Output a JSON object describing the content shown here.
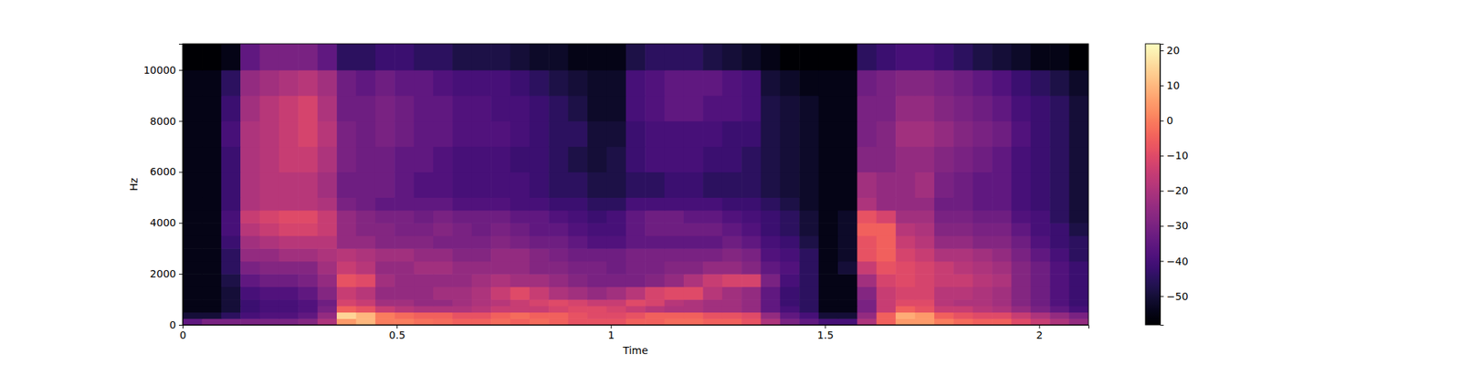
{
  "chart_data": {
    "type": "heatmap",
    "x_label": "Time",
    "y_label": "Hz",
    "xlim": [
      0,
      2.115
    ],
    "xticks": [
      0,
      0.5,
      1,
      1.5,
      2
    ],
    "ylim": [
      0,
      11025
    ],
    "yticks": [
      0,
      2000,
      4000,
      6000,
      8000,
      10000
    ],
    "time_bins": [
      0,
      0.045,
      0.09,
      0.135,
      0.18,
      0.225,
      0.27,
      0.315,
      0.36,
      0.405,
      0.45,
      0.495,
      0.54,
      0.585,
      0.63,
      0.675,
      0.72,
      0.765,
      0.81,
      0.855,
      0.9,
      0.945,
      0.99,
      1.035,
      1.08,
      1.125,
      1.17,
      1.215,
      1.26,
      1.305,
      1.35,
      1.395,
      1.44,
      1.485,
      1.53,
      1.575,
      1.62,
      1.665,
      1.71,
      1.755,
      1.8,
      1.845,
      1.89,
      1.935,
      1.98,
      2.025,
      2.07,
      2.115
    ],
    "freq_bins": [
      0,
      250,
      500,
      750,
      1000,
      1500,
      2000,
      2500,
      3000,
      3500,
      4000,
      4500,
      5000,
      6000,
      7000,
      8000,
      9000,
      10000,
      11025
    ],
    "cells": [
      [
        -35,
        -30,
        -30,
        -30,
        -30,
        -30,
        -28,
        -20,
        5,
        10,
        0,
        0,
        -2,
        -3,
        -5,
        -5,
        -3,
        -5,
        -3,
        -5,
        -8,
        -8,
        -8,
        -5,
        -5,
        -3,
        -3,
        -5,
        -5,
        -8,
        -20,
        -30,
        -35,
        -40,
        -40,
        -20,
        -5,
        5,
        5,
        0,
        -3,
        -5,
        -5,
        -10,
        -15,
        -20,
        -25
      ],
      [
        -50,
        -50,
        -45,
        -40,
        -38,
        -38,
        -35,
        -25,
        15,
        10,
        0,
        -3,
        -5,
        -5,
        -8,
        -8,
        -5,
        -3,
        -5,
        -5,
        -8,
        -10,
        -10,
        -8,
        -5,
        -5,
        -5,
        -8,
        -8,
        -10,
        -25,
        -35,
        -40,
        -50,
        -50,
        -25,
        -5,
        8,
        5,
        -5,
        -8,
        -10,
        -10,
        -15,
        -20,
        -25,
        -30
      ],
      [
        -55,
        -55,
        -50,
        -42,
        -40,
        -40,
        -38,
        -30,
        -5,
        -8,
        -15,
        -18,
        -20,
        -20,
        -20,
        -18,
        -15,
        -15,
        -15,
        -12,
        -10,
        -10,
        -12,
        -15,
        -18,
        -20,
        -20,
        -22,
        -22,
        -25,
        -35,
        -40,
        -45,
        -55,
        -55,
        -30,
        -15,
        -5,
        -8,
        -15,
        -15,
        -18,
        -20,
        -25,
        -30,
        -35,
        -40
      ],
      [
        -55,
        -55,
        -50,
        -42,
        -40,
        -40,
        -38,
        -32,
        -12,
        -15,
        -22,
        -22,
        -25,
        -25,
        -22,
        -20,
        -18,
        -15,
        -12,
        -10,
        -12,
        -15,
        -15,
        -10,
        -12,
        -18,
        -20,
        -22,
        -22,
        -25,
        -35,
        -42,
        -45,
        -55,
        -55,
        -30,
        -15,
        -10,
        -10,
        -18,
        -20,
        -20,
        -22,
        -28,
        -32,
        -38,
        -42
      ],
      [
        -55,
        -55,
        -50,
        -40,
        -38,
        -38,
        -35,
        -28,
        -15,
        -18,
        -25,
        -25,
        -25,
        -22,
        -22,
        -20,
        -15,
        -10,
        -15,
        -20,
        -22,
        -25,
        -22,
        -18,
        -12,
        -10,
        -10,
        -18,
        -22,
        -25,
        -35,
        -42,
        -45,
        -55,
        -55,
        -28,
        -15,
        -12,
        -12,
        -18,
        -18,
        -20,
        -22,
        -28,
        -32,
        -38,
        -42
      ],
      [
        -55,
        -55,
        -48,
        -35,
        -32,
        -32,
        -30,
        -25,
        -8,
        -10,
        -22,
        -25,
        -25,
        -25,
        -25,
        -22,
        -20,
        -22,
        -22,
        -25,
        -28,
        -30,
        -30,
        -30,
        -28,
        -25,
        -20,
        -15,
        -12,
        -12,
        -30,
        -40,
        -45,
        -55,
        -55,
        -22,
        -12,
        -10,
        -12,
        -15,
        -15,
        -18,
        -20,
        -28,
        -32,
        -38,
        -42
      ],
      [
        -55,
        -55,
        -45,
        -30,
        -28,
        -28,
        -28,
        -22,
        -15,
        -18,
        -25,
        -25,
        -22,
        -22,
        -25,
        -25,
        -25,
        -25,
        -28,
        -28,
        -30,
        -30,
        -32,
        -30,
        -30,
        -28,
        -28,
        -25,
        -25,
        -28,
        -35,
        -38,
        -45,
        -55,
        -50,
        -15,
        -8,
        -10,
        -12,
        -15,
        -18,
        -20,
        -22,
        -28,
        -32,
        -38,
        -42
      ],
      [
        -55,
        -55,
        -45,
        -25,
        -25,
        -22,
        -22,
        -20,
        -18,
        -20,
        -22,
        -22,
        -25,
        -25,
        -28,
        -28,
        -25,
        -25,
        -28,
        -30,
        -32,
        -32,
        -32,
        -30,
        -30,
        -30,
        -30,
        -30,
        -28,
        -30,
        -38,
        -40,
        -45,
        -55,
        -52,
        -8,
        -5,
        -12,
        -15,
        -20,
        -20,
        -22,
        -25,
        -30,
        -35,
        -40,
        -45
      ],
      [
        -55,
        -55,
        -42,
        -22,
        -20,
        -18,
        -18,
        -18,
        -25,
        -25,
        -28,
        -28,
        -28,
        -30,
        -30,
        -30,
        -28,
        -30,
        -32,
        -32,
        -35,
        -38,
        -38,
        -35,
        -35,
        -35,
        -35,
        -35,
        -32,
        -35,
        -40,
        -42,
        -48,
        -55,
        -52,
        -8,
        -5,
        -15,
        -18,
        -25,
        -25,
        -28,
        -28,
        -32,
        -38,
        -42,
        -45
      ],
      [
        -55,
        -55,
        -40,
        -18,
        -15,
        -12,
        -12,
        -15,
        -25,
        -28,
        -28,
        -30,
        -30,
        -28,
        -30,
        -32,
        -30,
        -32,
        -35,
        -35,
        -38,
        -40,
        -40,
        -35,
        -32,
        -32,
        -32,
        -32,
        -35,
        -38,
        -42,
        -45,
        -50,
        -55,
        -52,
        -5,
        -5,
        -18,
        -20,
        -28,
        -28,
        -30,
        -30,
        -35,
        -40,
        -42,
        -48
      ],
      [
        -55,
        -55,
        -40,
        -15,
        -12,
        -10,
        -10,
        -15,
        -25,
        -28,
        -30,
        -30,
        -32,
        -30,
        -32,
        -32,
        -32,
        -35,
        -35,
        -38,
        -40,
        -42,
        -40,
        -35,
        -32,
        -32,
        -35,
        -35,
        -38,
        -40,
        -42,
        -45,
        -50,
        -55,
        -52,
        -8,
        -12,
        -22,
        -22,
        -30,
        -30,
        -32,
        -32,
        -38,
        -40,
        -45,
        -50
      ],
      [
        -55,
        -55,
        -42,
        -20,
        -18,
        -18,
        -18,
        -20,
        -30,
        -32,
        -35,
        -35,
        -35,
        -35,
        -38,
        -38,
        -38,
        -40,
        -40,
        -42,
        -42,
        -45,
        -45,
        -40,
        -40,
        -40,
        -40,
        -40,
        -42,
        -42,
        -45,
        -48,
        -52,
        -55,
        -55,
        -20,
        -25,
        -25,
        -25,
        -32,
        -32,
        -35,
        -35,
        -40,
        -42,
        -45,
        -50
      ],
      [
        -55,
        -55,
        -42,
        -20,
        -18,
        -18,
        -18,
        -22,
        -32,
        -32,
        -32,
        -35,
        -38,
        -38,
        -40,
        -40,
        -40,
        -40,
        -42,
        -45,
        -45,
        -48,
        -48,
        -45,
        -45,
        -42,
        -42,
        -45,
        -45,
        -45,
        -48,
        -50,
        -52,
        -55,
        -55,
        -22,
        -25,
        -25,
        -22,
        -30,
        -32,
        -35,
        -35,
        -40,
        -42,
        -45,
        -50
      ],
      [
        -55,
        -55,
        -42,
        -20,
        -18,
        -15,
        -15,
        -20,
        -30,
        -32,
        -32,
        -35,
        -35,
        -38,
        -40,
        -40,
        -40,
        -42,
        -42,
        -45,
        -48,
        -50,
        -48,
        -42,
        -40,
        -40,
        -40,
        -42,
        -42,
        -45,
        -48,
        -50,
        -52,
        -55,
        -55,
        -28,
        -28,
        -25,
        -25,
        -28,
        -30,
        -32,
        -35,
        -40,
        -42,
        -45,
        -50
      ],
      [
        -55,
        -55,
        -40,
        -20,
        -18,
        -15,
        -12,
        -18,
        -30,
        -32,
        -30,
        -32,
        -35,
        -35,
        -38,
        -38,
        -38,
        -40,
        -42,
        -45,
        -45,
        -50,
        -50,
        -42,
        -40,
        -40,
        -40,
        -40,
        -42,
        -42,
        -48,
        -50,
        -52,
        -55,
        -55,
        -30,
        -28,
        -22,
        -22,
        -25,
        -28,
        -30,
        -32,
        -38,
        -42,
        -45,
        -50
      ],
      [
        -55,
        -55,
        -42,
        -22,
        -18,
        -15,
        -12,
        -20,
        -32,
        -32,
        -30,
        -32,
        -35,
        -35,
        -38,
        -38,
        -40,
        -40,
        -42,
        -45,
        -48,
        -52,
        -52,
        -40,
        -38,
        -35,
        -35,
        -38,
        -38,
        -40,
        -48,
        -50,
        -52,
        -55,
        -55,
        -30,
        -30,
        -25,
        -25,
        -28,
        -30,
        -32,
        -35,
        -40,
        -42,
        -45,
        -50
      ],
      [
        -55,
        -55,
        -45,
        -25,
        -22,
        -20,
        -18,
        -22,
        -32,
        -35,
        -32,
        -35,
        -35,
        -38,
        -40,
        -40,
        -40,
        -42,
        -45,
        -48,
        -50,
        -52,
        -52,
        -40,
        -38,
        -35,
        -35,
        -35,
        -38,
        -40,
        -50,
        -52,
        -55,
        -55,
        -55,
        -32,
        -30,
        -28,
        -28,
        -30,
        -32,
        -35,
        -38,
        -42,
        -45,
        -48,
        -52
      ],
      [
        -58,
        -58,
        -55,
        -35,
        -30,
        -30,
        -30,
        -35,
        -45,
        -45,
        -42,
        -42,
        -45,
        -45,
        -48,
        -48,
        -48,
        -50,
        -52,
        -52,
        -55,
        -55,
        -55,
        -48,
        -45,
        -45,
        -45,
        -48,
        -50,
        -52,
        -55,
        -58,
        -58,
        -58,
        -58,
        -45,
        -42,
        -40,
        -40,
        -42,
        -45,
        -48,
        -50,
        -52,
        -55,
        -55,
        -58
      ]
    ],
    "colorbar": {
      "range": [
        -58.2,
        21.9
      ],
      "ticks": [
        20,
        10,
        0,
        {
          "value": -10,
          "label": "−10"
        },
        {
          "value": -20,
          "label": "−20"
        },
        {
          "value": -30,
          "label": "−30"
        },
        {
          "value": -40,
          "label": "−40"
        },
        {
          "value": -50,
          "label": "−50"
        }
      ]
    }
  }
}
